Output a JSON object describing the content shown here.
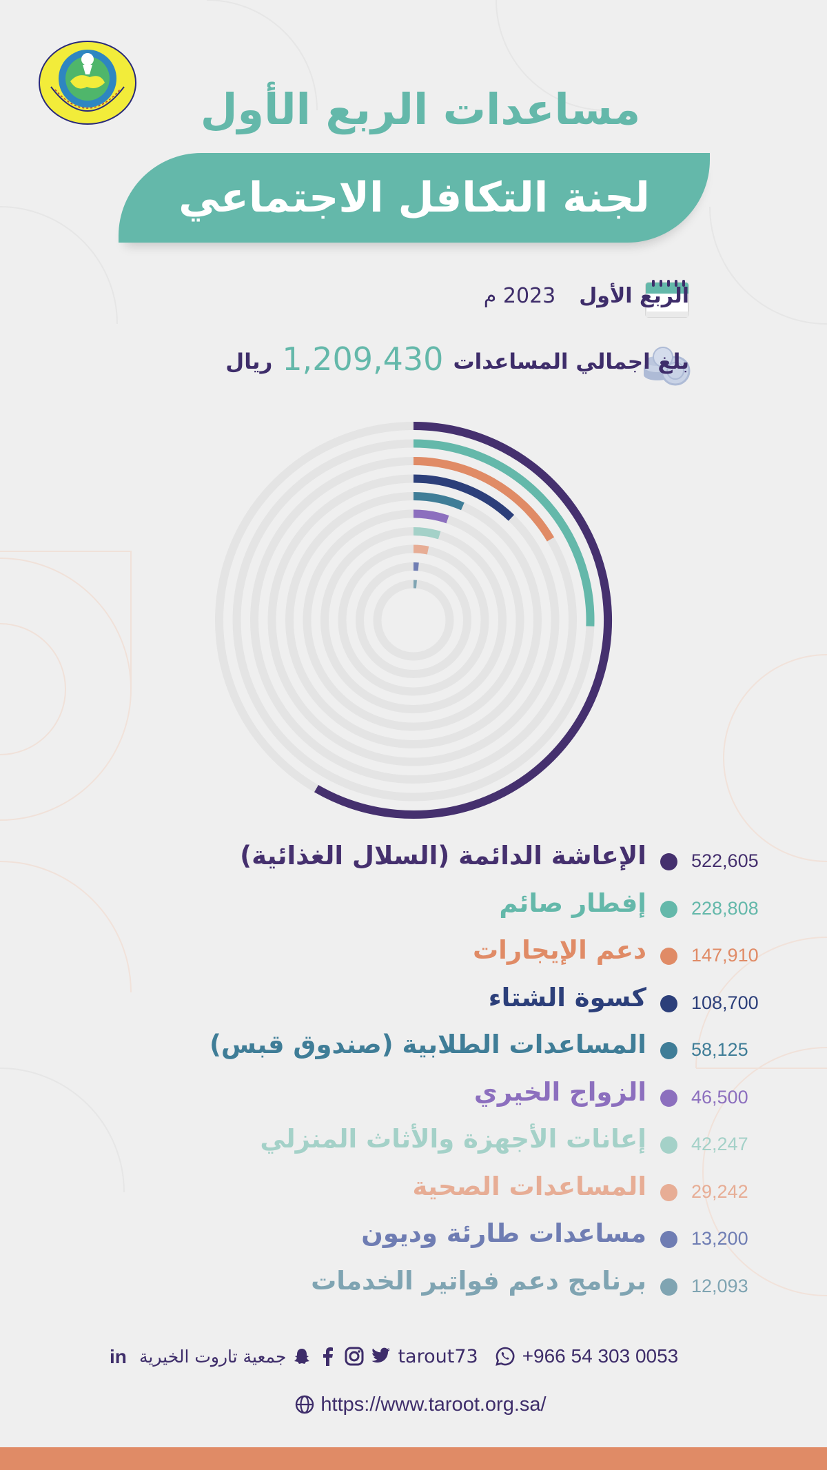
{
  "header": {
    "title_line1": "مساعدات الربع الأول",
    "title_line2": "لجنة التكافل الاجتماعي",
    "logo_text": "جمعية تاروت الخيرية للخدمات الاجتماعية"
  },
  "period": {
    "label": "الربع الأول",
    "year": "2023 م",
    "icon": "calendar-icon"
  },
  "total": {
    "prefix": "بلغ اجمالي المساعدات",
    "amount": "1,209,430",
    "currency": "ريال",
    "icon": "coins-icon"
  },
  "chart_data": {
    "type": "radial-bar",
    "max_value": 522605,
    "items": [
      {
        "label": "الإعاشة الدائمة (السلال الغذائية)",
        "value": 522605,
        "display": "522,605",
        "color": "#45306e"
      },
      {
        "label": "إفطار صائم",
        "value": 228808,
        "display": "228,808",
        "color": "#64b8aa"
      },
      {
        "label": "دعم الإيجارات",
        "value": 147910,
        "display": "147,910",
        "color": "#e08b66"
      },
      {
        "label": "كسوة الشتاء",
        "value": 108700,
        "display": "108,700",
        "color": "#2c3f7a"
      },
      {
        "label": "المساعدات الطلابية (صندوق قبس)",
        "value": 58125,
        "display": "58,125",
        "color": "#3f7d97"
      },
      {
        "label": "الزواج الخيري",
        "value": 46500,
        "display": "46,500",
        "color": "#8c6fbe"
      },
      {
        "label": "إعانات الأجهزة والأثاث المنزلي",
        "value": 42247,
        "display": "42,247",
        "color": "#a4d1c8"
      },
      {
        "label": "المساعدات الصحية",
        "value": 29242,
        "display": "29,242",
        "color": "#e7ad95"
      },
      {
        "label": "مساعدات طارئة وديون",
        "value": 13200,
        "display": "13,200",
        "color": "#6f7db3"
      },
      {
        "label": "برنامج دعم فواتير الخدمات",
        "value": 12093,
        "display": "12,093",
        "color": "#7fa4b2"
      }
    ]
  },
  "footer": {
    "org_name": "جمعية تاروت الخيرية",
    "handle": "tarout73",
    "phone": "+966 54 303 0053",
    "url": "https://www.taroot.org.sa/",
    "icons": [
      "linkedin-icon",
      "snapchat-icon",
      "facebook-icon",
      "instagram-icon",
      "twitter-icon",
      "whatsapp-icon",
      "globe-icon"
    ]
  }
}
